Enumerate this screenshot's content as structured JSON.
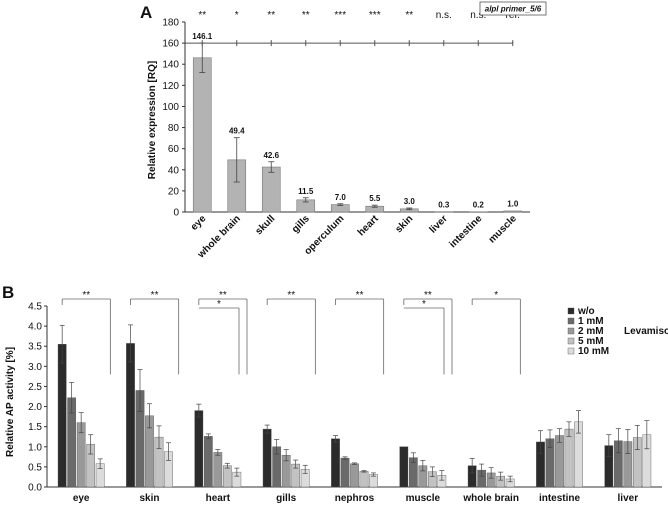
{
  "panel_a": {
    "letter": "A",
    "ylabel": "Relative expression [RQ]",
    "legend_box": "alpl primer_5/6",
    "ref_label": "ref.",
    "significance": [
      "**",
      "*",
      "**",
      "**",
      "***",
      "***",
      "**",
      "n.s.",
      "n.s."
    ]
  },
  "panel_b": {
    "letter": "B",
    "ylabel": "Relative AP activity [%]",
    "legend_note": "Levamisole",
    "significance": [
      {
        "category": "eye",
        "marks": [
          "**"
        ]
      },
      {
        "category": "skin",
        "marks": [
          "**"
        ]
      },
      {
        "category": "heart",
        "marks": [
          "**",
          "*"
        ]
      },
      {
        "category": "gills",
        "marks": [
          "**"
        ]
      },
      {
        "category": "nephros",
        "marks": [
          "**"
        ]
      },
      {
        "category": "muscle",
        "marks": [
          "**",
          "*"
        ]
      },
      {
        "category": "whole brain",
        "marks": [
          "*"
        ]
      }
    ]
  },
  "colors": {
    "bar_a": "#b3b3b3",
    "series_b": [
      "#2b2b2b",
      "#6a6a6a",
      "#999999",
      "#c2c2c2",
      "#dcdcdc"
    ]
  },
  "chart_data": [
    {
      "type": "bar",
      "categories": [
        "eye",
        "whole brain",
        "skull",
        "gills",
        "operculum",
        "heart",
        "skin",
        "liver",
        "intestine",
        "muscle"
      ],
      "values": [
        146.1,
        49.4,
        42.6,
        11.5,
        7.0,
        5.5,
        3.0,
        0.3,
        0.2,
        1.0
      ],
      "value_labels": [
        "146.1",
        "49.4",
        "42.6",
        "11.5",
        "7.0",
        "5.5",
        "3.0",
        "0.3",
        "0.2",
        "1.0"
      ],
      "errors": [
        14,
        21,
        5,
        2,
        0.8,
        1,
        0.8,
        0.1,
        0.1,
        0.2
      ],
      "ylabel": "Relative expression [RQ]",
      "ylim": [
        0,
        180
      ],
      "yticks": [
        0,
        20,
        40,
        60,
        80,
        100,
        120,
        140,
        160,
        180
      ],
      "grid": false
    },
    {
      "type": "bar",
      "categories": [
        "eye",
        "skin",
        "heart",
        "gills",
        "nephros",
        "muscle",
        "whole brain",
        "intestine",
        "liver"
      ],
      "series": [
        {
          "name": "w/o",
          "values": [
            3.55,
            3.57,
            1.9,
            1.44,
            1.2,
            1.0,
            0.53,
            1.12,
            1.03
          ],
          "errors": [
            0.47,
            0.46,
            0.16,
            0.1,
            0.08,
            0.0,
            0.18,
            0.28,
            0.27
          ]
        },
        {
          "name": "1 mM",
          "values": [
            2.22,
            2.4,
            1.26,
            1.0,
            0.72,
            0.73,
            0.42,
            1.2,
            1.15
          ],
          "errors": [
            0.38,
            0.52,
            0.06,
            0.18,
            0.03,
            0.12,
            0.15,
            0.22,
            0.3
          ]
        },
        {
          "name": "2 mM",
          "values": [
            1.6,
            1.77,
            0.86,
            0.79,
            0.58,
            0.53,
            0.35,
            1.28,
            1.13
          ],
          "errors": [
            0.25,
            0.3,
            0.07,
            0.14,
            0.02,
            0.13,
            0.13,
            0.17,
            0.3
          ]
        },
        {
          "name": "5 mM",
          "values": [
            1.06,
            1.24,
            0.53,
            0.57,
            0.39,
            0.38,
            0.27,
            1.44,
            1.23
          ],
          "errors": [
            0.24,
            0.28,
            0.06,
            0.1,
            0.02,
            0.12,
            0.1,
            0.18,
            0.3
          ]
        },
        {
          "name": "10 mM",
          "values": [
            0.58,
            0.88,
            0.37,
            0.44,
            0.31,
            0.29,
            0.2,
            1.62,
            1.3
          ],
          "errors": [
            0.12,
            0.22,
            0.1,
            0.1,
            0.04,
            0.12,
            0.07,
            0.28,
            0.35
          ]
        }
      ],
      "ylabel": "Relative AP activity [%]",
      "ylim": [
        0,
        4.5
      ],
      "yticks": [
        0.0,
        0.5,
        1.0,
        1.5,
        2.0,
        2.5,
        3.0,
        3.5,
        4.0,
        4.5
      ],
      "legend": "top-right",
      "grid": false
    }
  ]
}
